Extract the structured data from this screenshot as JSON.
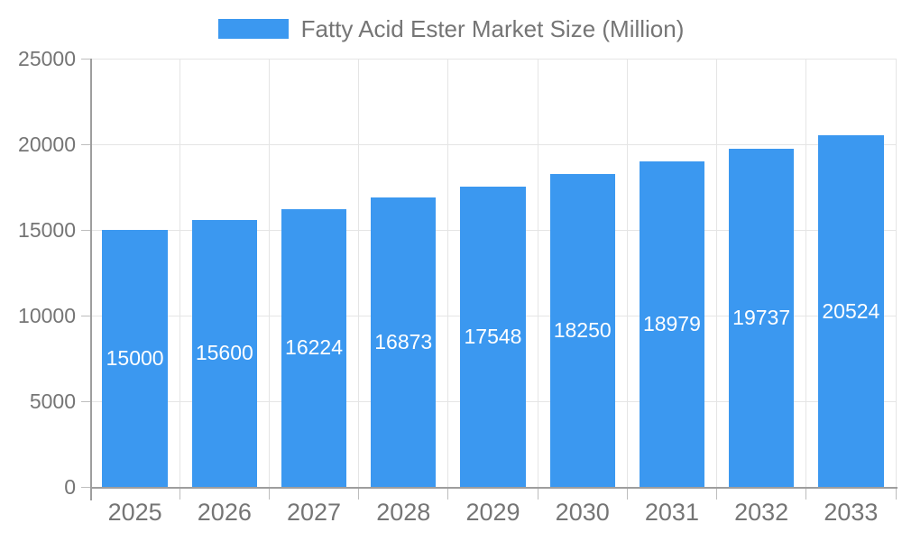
{
  "chart_data": {
    "type": "bar",
    "title": "Fatty Acid Ester Market Size (Million)",
    "categories": [
      "2025",
      "2026",
      "2027",
      "2028",
      "2029",
      "2030",
      "2031",
      "2032",
      "2033"
    ],
    "series": [
      {
        "name": "Fatty Acid Ester Market Size (Million)",
        "values": [
          15000,
          15600,
          16224,
          16873,
          17548,
          18250,
          18979,
          19737,
          20524
        ]
      }
    ],
    "xlabel": "",
    "ylabel": "",
    "ylim": [
      0,
      25000
    ],
    "yticks": [
      0,
      5000,
      10000,
      15000,
      20000,
      25000
    ],
    "grid": true,
    "legend_position": "top-center",
    "value_labels_position": "inside-center"
  },
  "colors": {
    "bar": "#3B98F0",
    "axis_line": "#9E9E9E",
    "grid_line": "#E5E5E5",
    "tick_line": "#BDBDBD",
    "tick_text": "#757575",
    "value_label_text": "#FFFFFF",
    "background": "#FFFFFF"
  }
}
